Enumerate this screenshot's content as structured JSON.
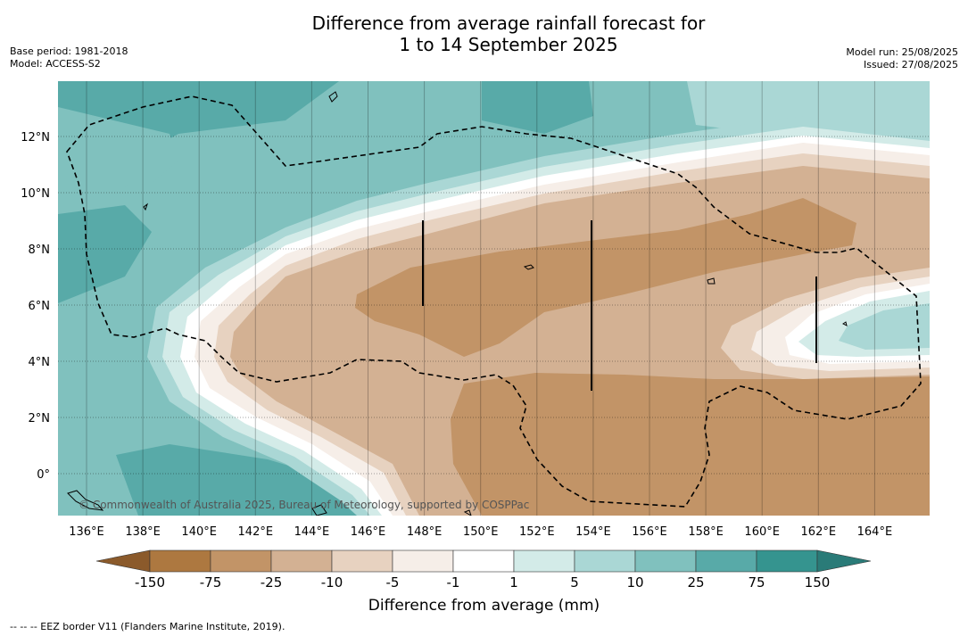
{
  "header": {
    "title_line1": "Difference from average rainfall forecast for",
    "title_line2": "1 to 14 September 2025",
    "base_period": "Base period: 1981-2018",
    "model": "Model: ACCESS-S2",
    "model_run": "Model run: 25/08/2025",
    "issued": "Issued: 27/08/2025"
  },
  "map": {
    "region": "Western Pacific (Micronesia / Federated States)",
    "longitude_ticks": [
      "136°E",
      "138°E",
      "140°E",
      "142°E",
      "144°E",
      "146°E",
      "148°E",
      "150°E",
      "152°E",
      "154°E",
      "156°E",
      "158°E",
      "160°E",
      "162°E",
      "164°E"
    ],
    "latitude_ticks": [
      "12°N",
      "10°N",
      "8°N",
      "6°N",
      "4°N",
      "2°N",
      "0°"
    ],
    "copyright": "© Commonwealth of Australia 2025, Bureau of Meteorology, supported by COSPPac"
  },
  "colorbar": {
    "title": "Difference from average (mm)",
    "tick_labels": [
      "-150",
      "-75",
      "-25",
      "-10",
      "-5",
      "-1",
      "1",
      "5",
      "10",
      "25",
      "75",
      "150"
    ],
    "colors": [
      "#8b5a2b",
      "#ad7840",
      "#c29467",
      "#d3b193",
      "#e7d2c0",
      "#f6eee8",
      "#ffffff",
      "#d3ebe8",
      "#aad7d5",
      "#80c1be",
      "#58aaa8",
      "#35948f",
      "#2a7b78"
    ]
  },
  "footnote": "--  --  -- EEZ border V11 (Flanders Marine Institute, 2019)."
}
